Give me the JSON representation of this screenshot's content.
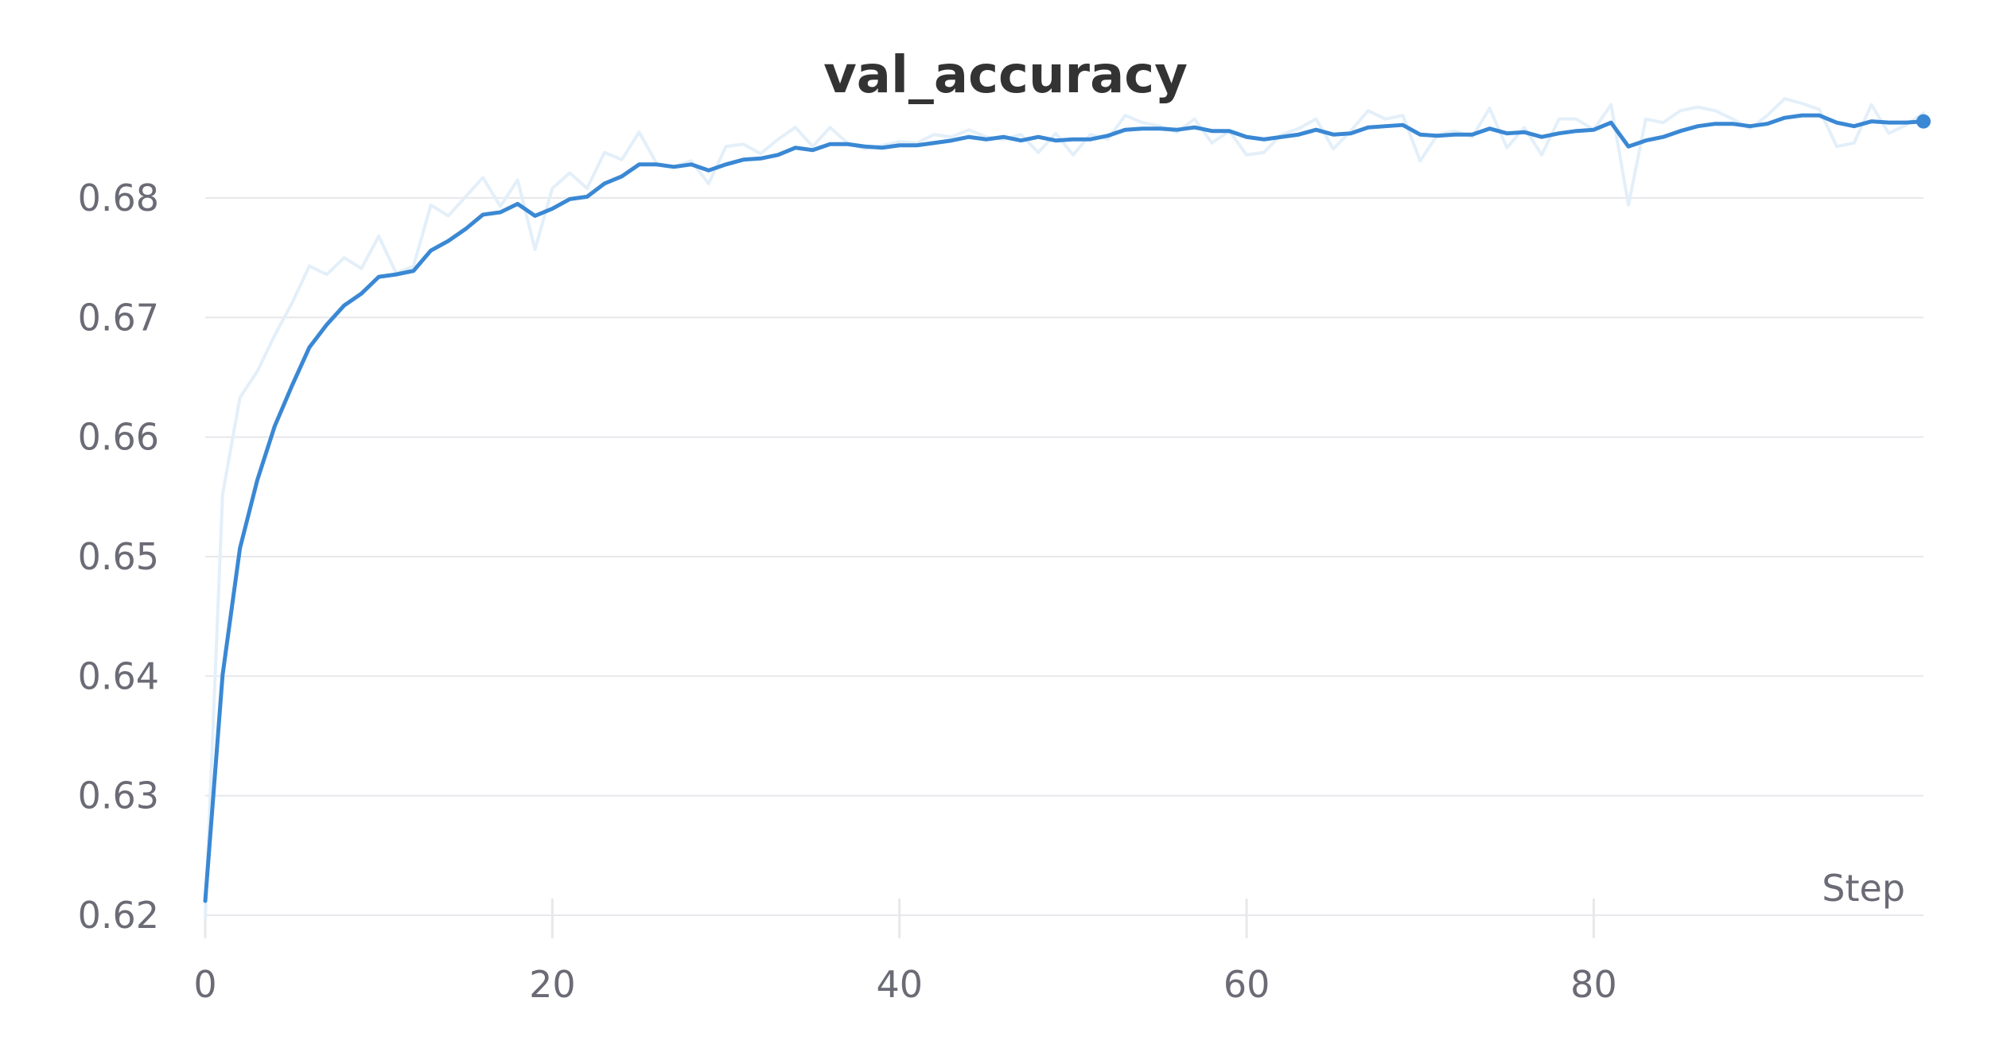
{
  "chart_data": {
    "type": "line",
    "title": "val_accuracy",
    "xlabel": "Step",
    "ylabel": "",
    "xlim": [
      0,
      99
    ],
    "ylim": [
      0.62,
      0.6915
    ],
    "xticks": [
      0,
      20,
      40,
      60,
      80
    ],
    "yticks": [
      0.62,
      0.63,
      0.64,
      0.65,
      0.66,
      0.67,
      0.68
    ],
    "xtick_labels": [
      "0",
      "20",
      "40",
      "60",
      "80"
    ],
    "ytick_labels": [
      "0.62",
      "0.63",
      "0.64",
      "0.65",
      "0.66",
      "0.67",
      "0.68"
    ],
    "grid": "horizontal",
    "legend": "none",
    "colors": {
      "smoothed": "#3a88d4",
      "raw": "#e3eff9",
      "grid": "#e8e8ec",
      "tick_text": "#6b6b76",
      "title_text": "#333333"
    },
    "series": [
      {
        "role": "raw",
        "x": [
          0,
          1,
          2,
          3,
          4,
          5,
          6,
          7,
          8,
          9,
          10,
          11,
          12,
          13,
          14,
          15,
          16,
          17,
          18,
          19,
          20,
          21,
          22,
          23,
          24,
          25,
          26,
          27,
          28,
          29,
          30,
          31,
          32,
          33,
          34,
          35,
          36,
          37,
          38,
          39,
          40,
          41,
          42,
          43,
          44,
          45,
          46,
          47,
          48,
          49,
          50,
          51,
          52,
          53,
          54,
          55,
          56,
          57,
          58,
          59,
          60,
          61,
          62,
          63,
          64,
          65,
          66,
          67,
          68,
          69,
          70,
          71,
          72,
          73,
          74,
          75,
          76,
          77,
          78,
          79,
          80,
          81,
          82,
          83,
          84,
          85,
          86,
          87,
          88,
          89,
          90,
          91,
          92,
          93,
          94,
          95,
          96,
          97,
          98,
          99
        ],
        "values": [
          0.6198,
          0.6552,
          0.6633,
          0.6655,
          0.6685,
          0.6712,
          0.6743,
          0.6736,
          0.675,
          0.6741,
          0.6768,
          0.6737,
          0.6743,
          0.6794,
          0.6785,
          0.6801,
          0.6817,
          0.6793,
          0.6815,
          0.6757,
          0.6808,
          0.6821,
          0.6808,
          0.6838,
          0.6832,
          0.6855,
          0.6829,
          0.6826,
          0.6831,
          0.6812,
          0.6843,
          0.6845,
          0.6837,
          0.6849,
          0.6859,
          0.6843,
          0.6859,
          0.6846,
          0.6841,
          0.6844,
          0.6847,
          0.6846,
          0.6853,
          0.6851,
          0.6857,
          0.6851,
          0.6849,
          0.6853,
          0.6838,
          0.6854,
          0.6836,
          0.6853,
          0.6849,
          0.6869,
          0.6863,
          0.686,
          0.6855,
          0.6866,
          0.6846,
          0.6856,
          0.6836,
          0.6838,
          0.6853,
          0.6858,
          0.6866,
          0.6841,
          0.6856,
          0.6873,
          0.6866,
          0.6869,
          0.6831,
          0.6853,
          0.6856,
          0.6851,
          0.6875,
          0.6842,
          0.6859,
          0.6836,
          0.6866,
          0.6866,
          0.6857,
          0.6878,
          0.6794,
          0.6866,
          0.6863,
          0.6873,
          0.6876,
          0.6873,
          0.6866,
          0.6858,
          0.6869,
          0.6883,
          0.6879,
          0.6874,
          0.6843,
          0.6846,
          0.6878,
          0.6854,
          0.6861,
          0.6871
        ]
      },
      {
        "role": "smoothed",
        "x": [
          0,
          1,
          2,
          3,
          4,
          5,
          6,
          7,
          8,
          9,
          10,
          11,
          12,
          13,
          14,
          15,
          16,
          17,
          18,
          19,
          20,
          21,
          22,
          23,
          24,
          25,
          26,
          27,
          28,
          29,
          30,
          31,
          32,
          33,
          34,
          35,
          36,
          37,
          38,
          39,
          40,
          41,
          42,
          43,
          44,
          45,
          46,
          47,
          48,
          49,
          50,
          51,
          52,
          53,
          54,
          55,
          56,
          57,
          58,
          59,
          60,
          61,
          62,
          63,
          64,
          65,
          66,
          67,
          68,
          69,
          70,
          71,
          72,
          73,
          74,
          75,
          76,
          77,
          78,
          79,
          80,
          81,
          82,
          83,
          84,
          85,
          86,
          87,
          88,
          89,
          90,
          91,
          92,
          93,
          94,
          95,
          96,
          97,
          98,
          99
        ],
        "values": [
          0.6212,
          0.6401,
          0.6507,
          0.6564,
          0.6609,
          0.6643,
          0.6675,
          0.6694,
          0.671,
          0.672,
          0.6734,
          0.6736,
          0.6739,
          0.6756,
          0.6764,
          0.6774,
          0.6786,
          0.6788,
          0.6795,
          0.6785,
          0.6791,
          0.6799,
          0.6801,
          0.6812,
          0.6818,
          0.6828,
          0.6828,
          0.6826,
          0.6828,
          0.6823,
          0.6828,
          0.6832,
          0.6833,
          0.6836,
          0.6842,
          0.684,
          0.6845,
          0.6845,
          0.6843,
          0.6842,
          0.6844,
          0.6844,
          0.6846,
          0.6848,
          0.6851,
          0.6849,
          0.6851,
          0.6848,
          0.6851,
          0.6848,
          0.6849,
          0.6849,
          0.6852,
          0.6857,
          0.6858,
          0.6858,
          0.6857,
          0.6859,
          0.6856,
          0.6856,
          0.6851,
          0.6849,
          0.6851,
          0.6853,
          0.6857,
          0.6853,
          0.6854,
          0.6859,
          0.686,
          0.6861,
          0.6853,
          0.6852,
          0.6853,
          0.6853,
          0.6858,
          0.6854,
          0.6855,
          0.6851,
          0.6854,
          0.6856,
          0.6857,
          0.6863,
          0.6843,
          0.6848,
          0.6851,
          0.6856,
          0.686,
          0.6862,
          0.6862,
          0.686,
          0.6862,
          0.6867,
          0.6869,
          0.6869,
          0.6863,
          0.686,
          0.6864,
          0.6863,
          0.6863,
          0.6864
        ]
      }
    ]
  }
}
